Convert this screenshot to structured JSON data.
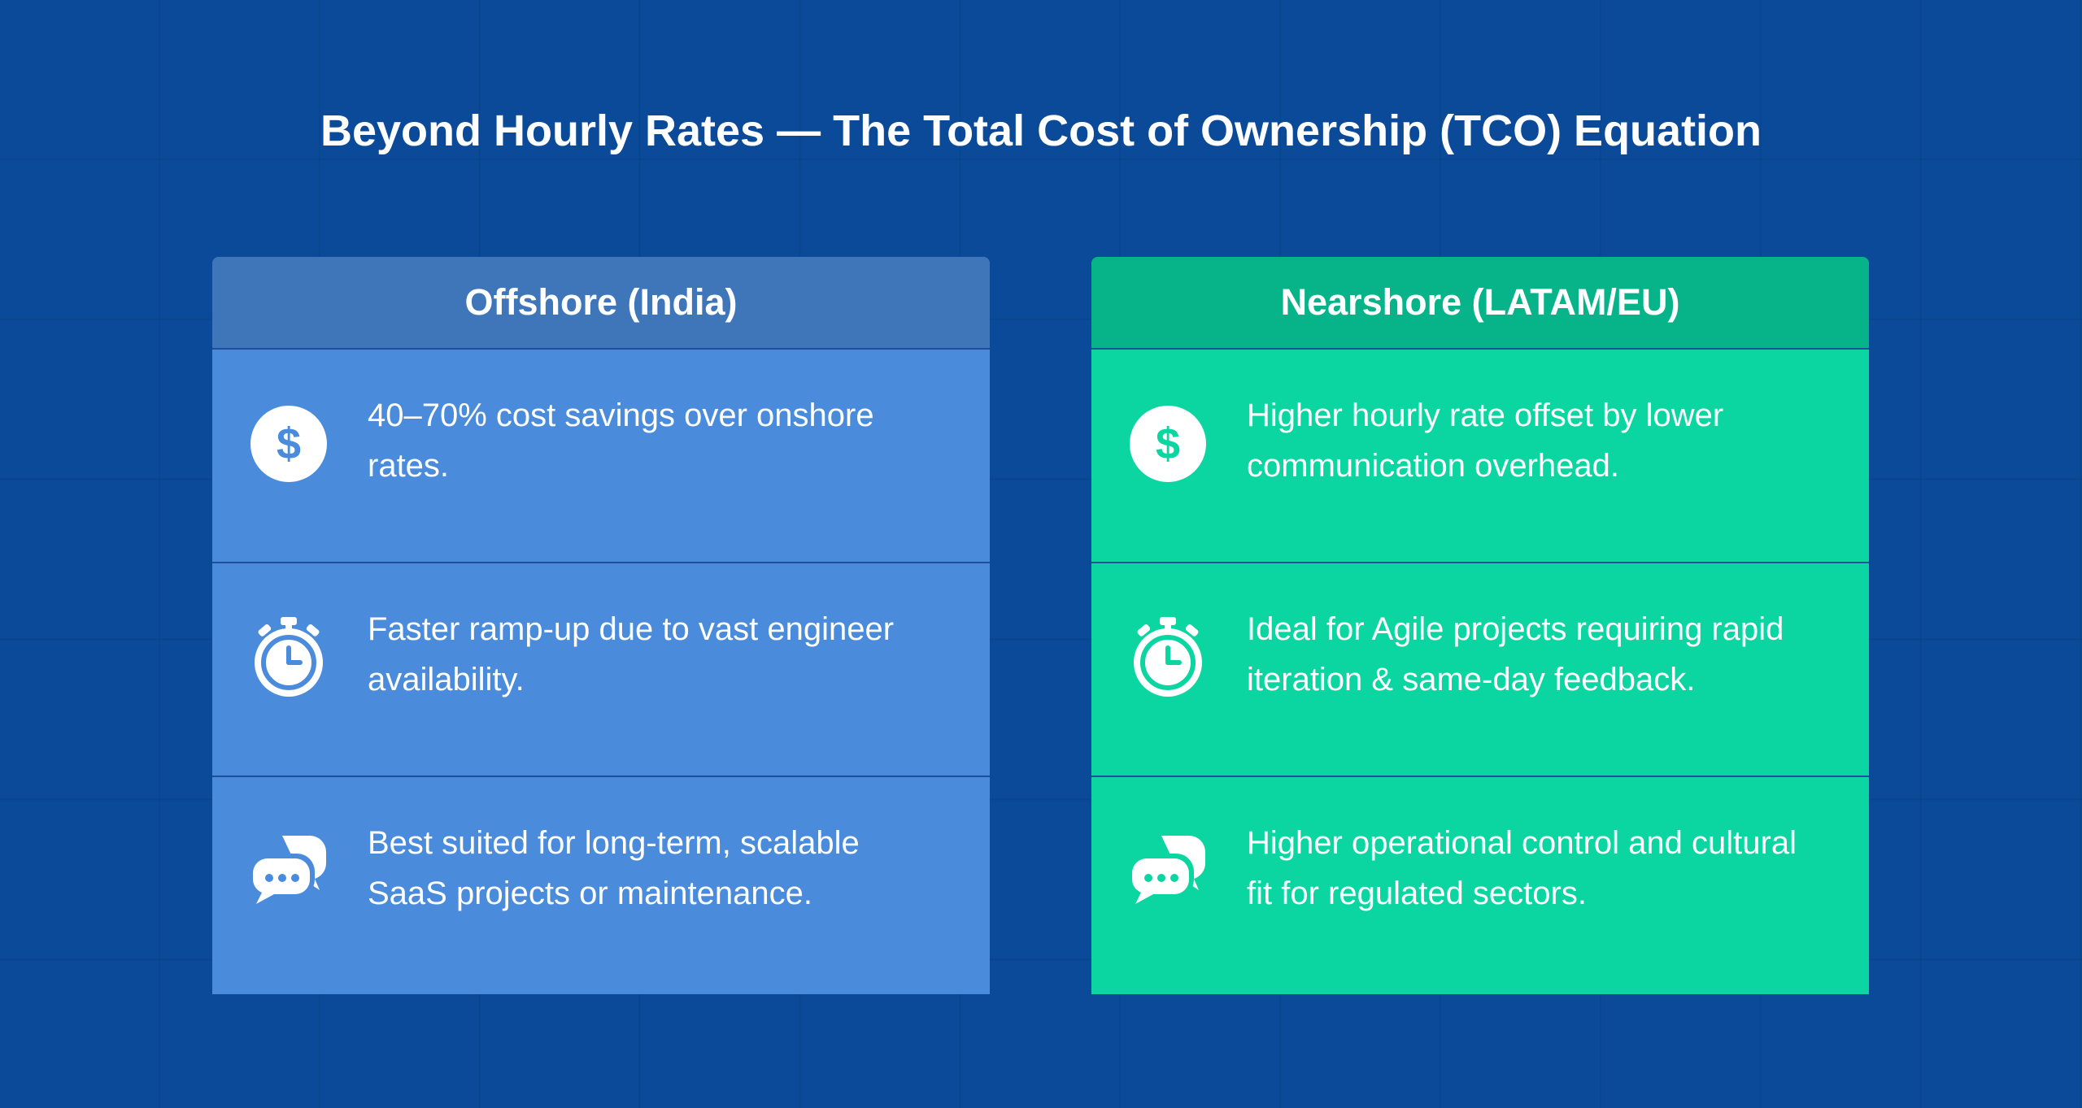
{
  "title": "Beyond Hourly Rates —  The Total Cost of Ownership (TCO) Equation",
  "columns": [
    {
      "header": "Offshore (India)",
      "rows": [
        {
          "icon": "dollar-icon",
          "text": "40–70% cost savings over onshore rates."
        },
        {
          "icon": "stopwatch-icon",
          "text": "Faster ramp-up due to vast engineer availability."
        },
        {
          "icon": "chat-bubbles-icon",
          "text": "Best suited for long-term, scalable SaaS projects or maintenance."
        }
      ]
    },
    {
      "header": "Nearshore (LATAM/EU)",
      "rows": [
        {
          "icon": "dollar-icon",
          "text": "Higher hourly rate offset by lower communication overhead."
        },
        {
          "icon": "stopwatch-icon",
          "text": "Ideal for Agile projects requiring rapid iteration & same-day feedback."
        },
        {
          "icon": "chat-bubbles-icon",
          "text": "Higher operational control and cultural fit for regulated sectors."
        }
      ]
    }
  ],
  "colors": {
    "background": "#0a4a99",
    "offshore_body": "#4a8cdb",
    "offshore_header": "#3f76ba",
    "nearshore_body": "#0bd6a1",
    "nearshore_header": "#07b48a"
  }
}
